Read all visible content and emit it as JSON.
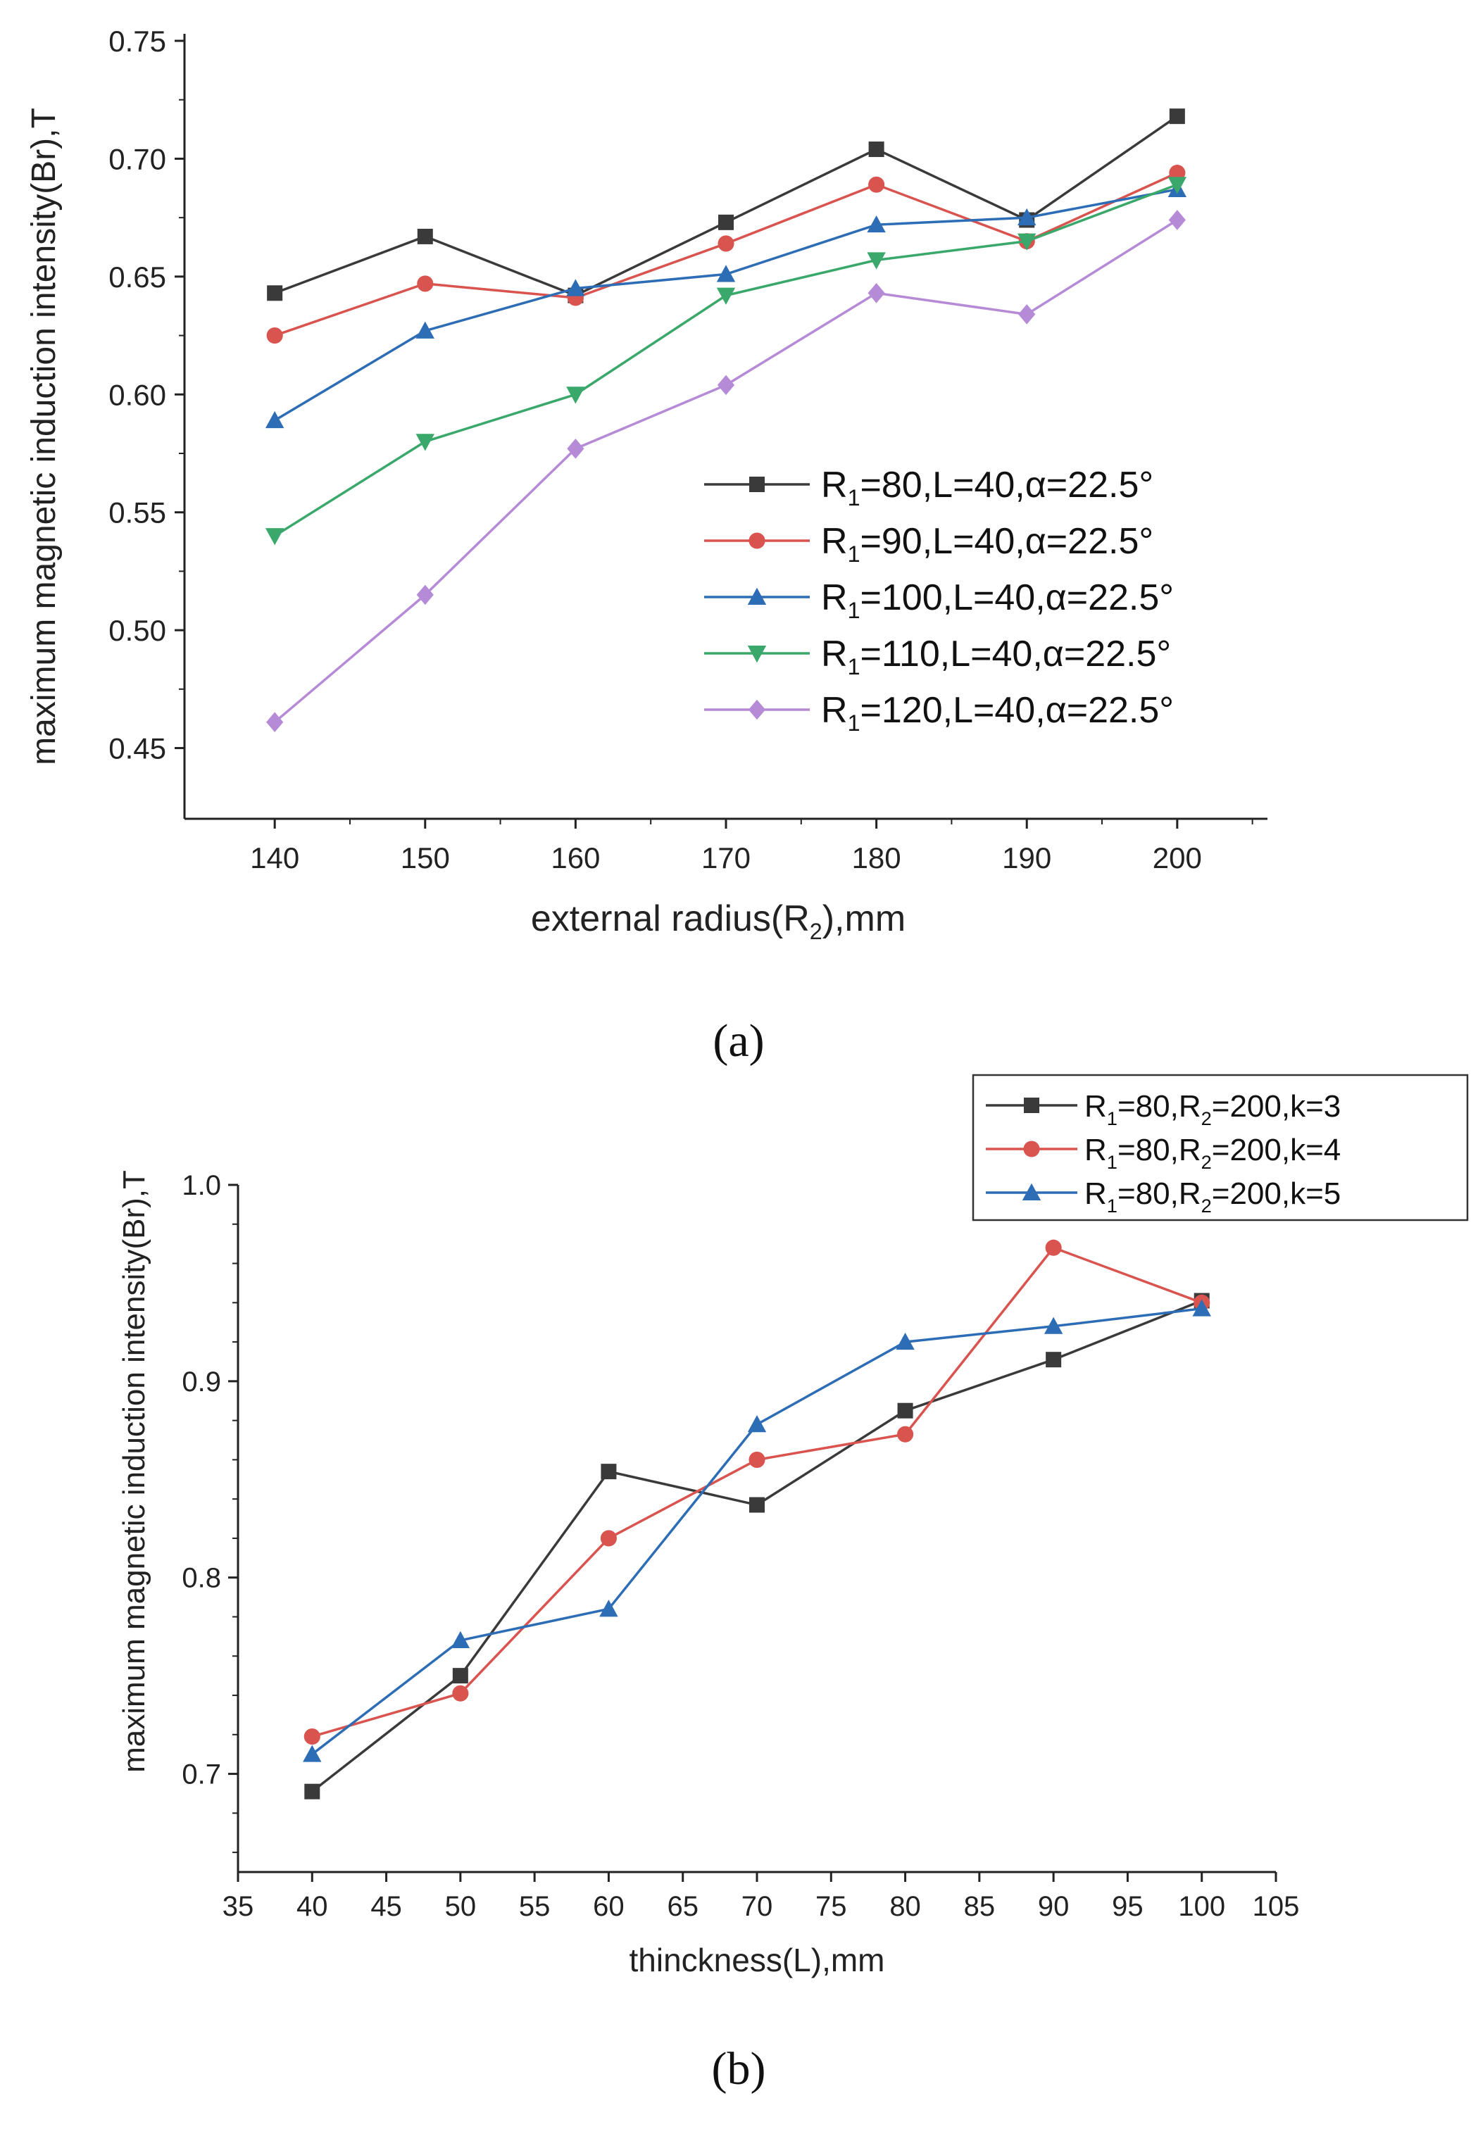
{
  "chart_data": [
    {
      "type": "line",
      "panel_label": "(a)",
      "ylabel": "maximum magnetic induction intensity(Br),T",
      "xlabel": {
        "pre": "external radius(R",
        "sub": "2",
        "post": "),mm"
      },
      "x": [
        140,
        150,
        160,
        170,
        180,
        190,
        200
      ],
      "xticks": [
        "140",
        "150",
        "160",
        "170",
        "180",
        "190",
        "200"
      ],
      "yticks": [
        "0.45",
        "0.50",
        "0.55",
        "0.60",
        "0.65",
        "0.70",
        "0.75"
      ],
      "ylim": [
        0.42,
        0.75
      ],
      "xlim": [
        134,
        206
      ],
      "legend_position": "lower-right",
      "series": [
        {
          "name": {
            "pre": "R",
            "sub": "1",
            "post": "=80,L=40,α=22.5°"
          },
          "marker": "square",
          "color": "#3a3a3a",
          "values": [
            0.643,
            0.667,
            0.642,
            0.673,
            0.704,
            0.674,
            0.718
          ]
        },
        {
          "name": {
            "pre": "R",
            "sub": "1",
            "post": "=90,L=40,α=22.5°"
          },
          "marker": "circle",
          "color": "#d9534f",
          "values": [
            0.625,
            0.647,
            0.641,
            0.664,
            0.689,
            0.665,
            0.694
          ]
        },
        {
          "name": {
            "pre": "R",
            "sub": "1",
            "post": "=100,L=40,α=22.5°"
          },
          "marker": "triangle-up",
          "color": "#2d6db5",
          "values": [
            0.589,
            0.627,
            0.645,
            0.651,
            0.672,
            0.675,
            0.687
          ]
        },
        {
          "name": {
            "pre": "R",
            "sub": "1",
            "post": "=110,L=40,α=22.5°"
          },
          "marker": "triangle-down",
          "color": "#3aa86b",
          "values": [
            0.54,
            0.58,
            0.6,
            0.642,
            0.657,
            0.665,
            0.689
          ]
        },
        {
          "name": {
            "pre": "R",
            "sub": "1",
            "post": "=120,L=40,α=22.5°"
          },
          "marker": "diamond",
          "color": "#b58ad6",
          "values": [
            0.461,
            0.515,
            0.577,
            0.604,
            0.643,
            0.634,
            0.674
          ]
        }
      ]
    },
    {
      "type": "line",
      "panel_label": "(b)",
      "ylabel": "maximum magnetic induction intensity(Br),T",
      "xlabel": {
        "pre": "thinckness(L),mm",
        "sub": "",
        "post": ""
      },
      "x": [
        40,
        50,
        60,
        70,
        80,
        90,
        100
      ],
      "xticks": [
        "35",
        "40",
        "45",
        "50",
        "55",
        "60",
        "65",
        "70",
        "75",
        "80",
        "85",
        "90",
        "95",
        "100",
        "105"
      ],
      "yticks": [
        "0.7",
        "0.8",
        "0.9",
        "1.0"
      ],
      "ylim": [
        0.65,
        1.0
      ],
      "xlim": [
        35,
        105
      ],
      "legend_position": "top-right",
      "series": [
        {
          "name": {
            "pre": "R",
            "sub": "1",
            "mid": "=80,R",
            "sub2": "2",
            "post": "=200,k=3"
          },
          "marker": "square",
          "color": "#3a3a3a",
          "values": [
            0.691,
            0.75,
            0.854,
            0.837,
            0.885,
            0.911,
            0.941
          ]
        },
        {
          "name": {
            "pre": "R",
            "sub": "1",
            "mid": "=80,R",
            "sub2": "2",
            "post": "=200,k=4"
          },
          "marker": "circle",
          "color": "#d9534f",
          "values": [
            0.719,
            0.741,
            0.82,
            0.86,
            0.873,
            0.968,
            0.94
          ]
        },
        {
          "name": {
            "pre": "R",
            "sub": "1",
            "mid": "=80,R",
            "sub2": "2",
            "post": "=200,k=5"
          },
          "marker": "triangle-up",
          "color": "#2d6db5",
          "values": [
            0.71,
            0.768,
            0.784,
            0.878,
            0.92,
            0.928,
            0.937
          ]
        }
      ]
    }
  ]
}
